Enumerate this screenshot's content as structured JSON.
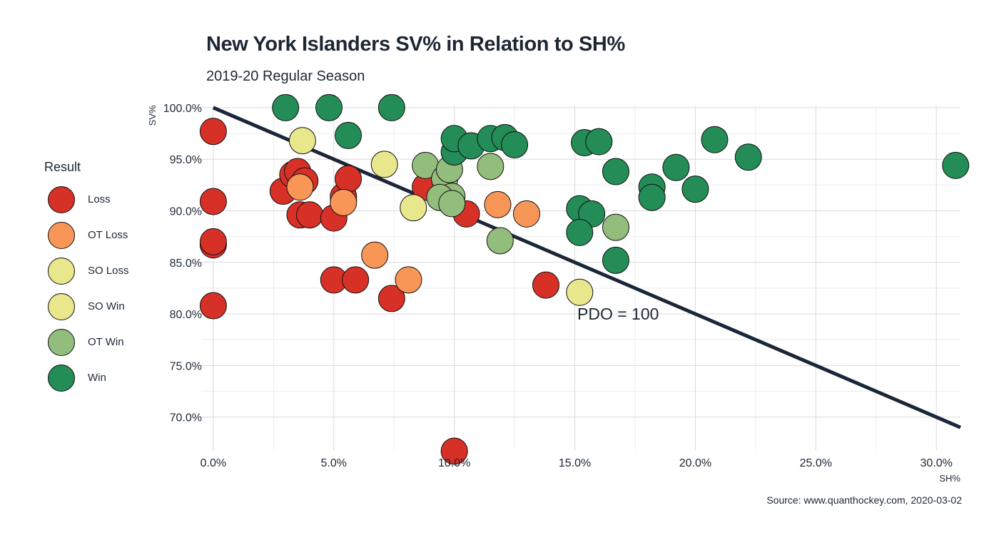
{
  "title": "New York Islanders SV% in Relation to SH%",
  "subtitle": "2019-20 Regular Season",
  "source": "Source: www.quanthockey.com, 2020-03-02",
  "legend": {
    "title": "Result",
    "items": [
      {
        "label": "Loss",
        "color": "#d73027"
      },
      {
        "label": "OT Loss",
        "color": "#f89658"
      },
      {
        "label": "SO Loss",
        "color": "#e9e78c"
      },
      {
        "label": "SO Win",
        "color": "#e9e78c"
      },
      {
        "label": "OT Win",
        "color": "#93bd7c"
      },
      {
        "label": "Win",
        "color": "#238c57"
      }
    ]
  },
  "chart_data": {
    "type": "scatter",
    "title": "New York Islanders SV% in Relation to SH%",
    "subtitle": "2019-20 Regular Season",
    "xlabel": "SH%",
    "ylabel": "SV%",
    "xlim": [
      -0.5,
      31.0
    ],
    "ylim": [
      66.8,
      100.2
    ],
    "x_ticks": [
      0,
      5,
      10,
      15,
      20,
      25,
      30
    ],
    "x_tick_labels": [
      "0.0%",
      "5.0%",
      "10.0%",
      "15.0%",
      "20.0%",
      "25.0%",
      "30.0%"
    ],
    "y_ticks": [
      70,
      75,
      80,
      85,
      90,
      95,
      100
    ],
    "y_tick_labels": [
      "70.0%",
      "75.0%",
      "80.0%",
      "85.0%",
      "90.0%",
      "95.0%",
      "100.0%"
    ],
    "grid": true,
    "legend_position": "left",
    "reference_line": {
      "label": "PDO = 100",
      "equation": "SV% = 100 - SH%"
    },
    "annotation": "PDO = 100",
    "colors": {
      "Loss": "#d73027",
      "OT Loss": "#f89658",
      "SO Loss": "#e9e78c",
      "SO Win": "#e9e78c",
      "OT Win": "#93bd7c",
      "Win": "#238c57",
      "line": "#1b2639"
    },
    "series": [
      {
        "name": "Loss",
        "points": [
          [
            0.0,
            97.7
          ],
          [
            0.0,
            90.9
          ],
          [
            0.0,
            86.7
          ],
          [
            0.0,
            87.0
          ],
          [
            0.0,
            80.8
          ],
          [
            2.9,
            91.9
          ],
          [
            3.3,
            93.5
          ],
          [
            3.5,
            93.8
          ],
          [
            3.6,
            89.6
          ],
          [
            3.8,
            92.9
          ],
          [
            4.0,
            89.6
          ],
          [
            5.0,
            89.3
          ],
          [
            5.4,
            91.0
          ],
          [
            5.4,
            91.4
          ],
          [
            5.6,
            93.1
          ],
          [
            5.0,
            83.3
          ],
          [
            5.9,
            83.3
          ],
          [
            7.4,
            81.5
          ],
          [
            8.8,
            92.3
          ],
          [
            10.5,
            89.7
          ],
          [
            10.0,
            66.7
          ],
          [
            13.8,
            82.8
          ]
        ]
      },
      {
        "name": "OT Loss",
        "points": [
          [
            3.6,
            92.3
          ],
          [
            5.4,
            90.8
          ],
          [
            6.7,
            85.7
          ],
          [
            8.1,
            83.3
          ],
          [
            11.8,
            90.6
          ],
          [
            13.0,
            89.7
          ]
        ]
      },
      {
        "name": "SO Loss",
        "points": [
          [
            3.7,
            96.8
          ],
          [
            7.1,
            94.5
          ],
          [
            8.3,
            90.3
          ]
        ]
      },
      {
        "name": "SO Win",
        "points": [
          [
            15.2,
            82.1
          ]
        ]
      },
      {
        "name": "OT Win",
        "points": [
          [
            8.8,
            94.4
          ],
          [
            9.6,
            93.1
          ],
          [
            9.9,
            91.4
          ],
          [
            9.4,
            91.3
          ],
          [
            9.9,
            90.7
          ],
          [
            9.8,
            94.0
          ],
          [
            11.5,
            94.3
          ],
          [
            11.9,
            87.1
          ],
          [
            16.7,
            88.4
          ]
        ]
      },
      {
        "name": "Win",
        "points": [
          [
            3.0,
            100.0
          ],
          [
            4.8,
            100.0
          ],
          [
            7.4,
            100.0
          ],
          [
            5.6,
            97.3
          ],
          [
            10.0,
            95.7
          ],
          [
            10.0,
            97.0
          ],
          [
            10.7,
            96.3
          ],
          [
            11.5,
            97.0
          ],
          [
            12.1,
            97.1
          ],
          [
            12.5,
            96.4
          ],
          [
            15.4,
            96.6
          ],
          [
            16.0,
            96.7
          ],
          [
            16.7,
            93.8
          ],
          [
            15.2,
            90.2
          ],
          [
            15.7,
            89.7
          ],
          [
            15.2,
            87.9
          ],
          [
            16.7,
            85.2
          ],
          [
            18.2,
            92.3
          ],
          [
            18.2,
            91.3
          ],
          [
            19.2,
            94.2
          ],
          [
            20.0,
            92.1
          ],
          [
            20.8,
            96.9
          ],
          [
            22.2,
            95.2
          ],
          [
            30.8,
            94.4
          ]
        ]
      }
    ]
  }
}
